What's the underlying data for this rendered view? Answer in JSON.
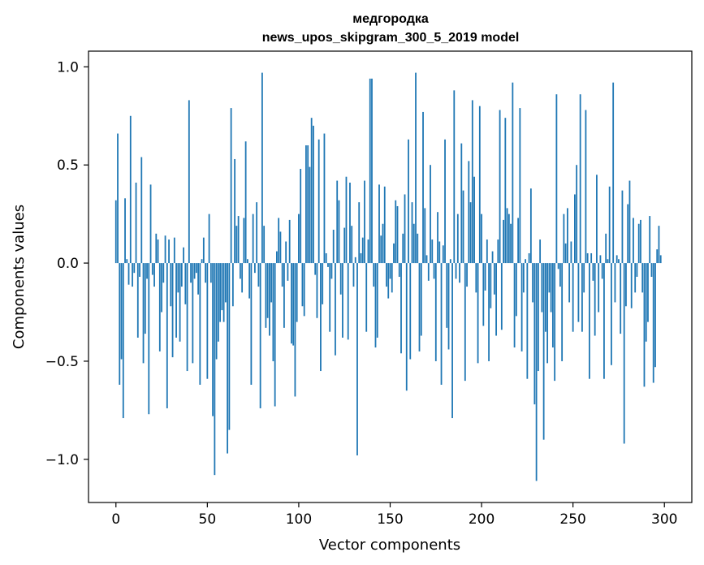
{
  "chart_data": {
    "type": "bar",
    "title_line1": "медгородка",
    "title_line2": "news_upos_skipgram_300_5_2019 model",
    "xlabel": "Vector components",
    "ylabel": "Components values",
    "xlim": [
      -15,
      315
    ],
    "ylim": [
      -1.22,
      1.08
    ],
    "x_ticks": [
      0,
      50,
      100,
      150,
      200,
      250,
      300
    ],
    "y_ticks": [
      -1.0,
      -0.5,
      0.0,
      0.5,
      1.0
    ],
    "x_tick_labels": [
      "0",
      "50",
      "100",
      "150",
      "200",
      "250",
      "300"
    ],
    "y_tick_labels": [
      "−1.0",
      "−0.5",
      "0.0",
      "0.5",
      "1.0"
    ],
    "bar_color": "#1f77b4",
    "grid": false,
    "values": [
      0.32,
      0.66,
      -0.62,
      -0.49,
      -0.79,
      0.33,
      0.02,
      -0.11,
      0.75,
      -0.12,
      -0.05,
      0.41,
      -0.38,
      -0.07,
      0.54,
      -0.51,
      -0.36,
      -0.08,
      -0.77,
      0.4,
      -0.06,
      -0.12,
      0.15,
      0.12,
      -0.45,
      -0.25,
      -0.1,
      0.14,
      -0.74,
      0.12,
      -0.22,
      -0.48,
      0.13,
      -0.38,
      -0.15,
      -0.4,
      -0.12,
      0.08,
      -0.21,
      -0.55,
      0.83,
      -0.1,
      -0.51,
      -0.08,
      -0.05,
      -0.16,
      -0.62,
      0.02,
      0.13,
      -0.1,
      -0.59,
      0.25,
      -0.1,
      -0.78,
      -1.08,
      -0.49,
      -0.4,
      -0.3,
      -0.24,
      -0.3,
      -0.2,
      -0.97,
      -0.85,
      0.79,
      -0.22,
      0.53,
      0.19,
      0.24,
      -0.08,
      -0.15,
      0.23,
      0.62,
      0.02,
      -0.18,
      -0.62,
      0.25,
      -0.05,
      0.31,
      -0.12,
      -0.74,
      0.97,
      0.19,
      -0.33,
      -0.28,
      -0.37,
      -0.2,
      -0.5,
      -0.73,
      0.06,
      0.23,
      0.16,
      -0.12,
      -0.33,
      0.11,
      -0.09,
      0.22,
      -0.41,
      -0.42,
      -0.68,
      -0.3,
      0.25,
      0.48,
      -0.22,
      -0.27,
      0.6,
      0.6,
      0.49,
      0.74,
      0.7,
      -0.06,
      -0.28,
      0.63,
      -0.55,
      -0.21,
      0.66,
      0.05,
      -0.02,
      -0.35,
      -0.08,
      0.17,
      -0.47,
      0.42,
      0.32,
      -0.16,
      -0.38,
      0.18,
      0.44,
      -0.39,
      0.41,
      0.19,
      -0.12,
      0.03,
      -0.98,
      0.31,
      0.05,
      0.13,
      0.42,
      -0.35,
      0.12,
      0.94,
      0.94,
      -0.12,
      -0.43,
      -0.38,
      0.4,
      0.14,
      0.2,
      0.39,
      -0.12,
      -0.18,
      -0.08,
      -0.15,
      0.1,
      0.32,
      0.29,
      -0.07,
      -0.46,
      0.15,
      0.35,
      -0.65,
      0.63,
      -0.49,
      0.31,
      0.2,
      0.97,
      0.15,
      -0.45,
      -0.37,
      0.77,
      0.28,
      0.04,
      -0.09,
      0.5,
      0.12,
      -0.08,
      -0.5,
      0.26,
      0.11,
      -0.62,
      0.09,
      0.63,
      -0.33,
      -0.44,
      0.02,
      -0.79,
      0.88,
      -0.08,
      0.25,
      -0.1,
      0.61,
      0.37,
      -0.6,
      -0.12,
      0.52,
      0.31,
      0.83,
      0.44,
      -0.15,
      -0.51,
      0.8,
      0.25,
      -0.32,
      -0.14,
      0.12,
      -0.5,
      -0.23,
      0.06,
      -0.16,
      -0.37,
      0.12,
      0.78,
      -0.34,
      0.22,
      0.74,
      0.28,
      0.25,
      0.2,
      0.92,
      -0.43,
      -0.27,
      0.23,
      0.79,
      -0.45,
      -0.15,
      0.02,
      -0.59,
      0.05,
      0.38,
      -0.2,
      -0.72,
      -1.11,
      -0.55,
      0.12,
      -0.25,
      -0.9,
      -0.35,
      -0.51,
      -0.15,
      -0.25,
      -0.43,
      -0.6,
      0.86,
      -0.03,
      -0.12,
      -0.5,
      0.25,
      0.1,
      0.28,
      -0.2,
      0.11,
      -0.35,
      0.35,
      0.5,
      -0.3,
      0.86,
      -0.35,
      -0.15,
      0.78,
      0.05,
      -0.59,
      0.05,
      -0.09,
      -0.37,
      0.45,
      -0.25,
      0.04,
      -0.08,
      -0.59,
      0.15,
      0.02,
      0.39,
      -0.52,
      0.92,
      -0.2,
      0.04,
      0.02,
      -0.36,
      0.37,
      -0.92,
      -0.22,
      0.3,
      0.42,
      -0.23,
      0.23,
      -0.15,
      -0.07,
      0.2,
      0.22,
      -0.15,
      -0.63,
      -0.4,
      -0.3,
      0.24,
      -0.07,
      -0.61,
      -0.53,
      0.07,
      0.19,
      0.04
    ]
  }
}
